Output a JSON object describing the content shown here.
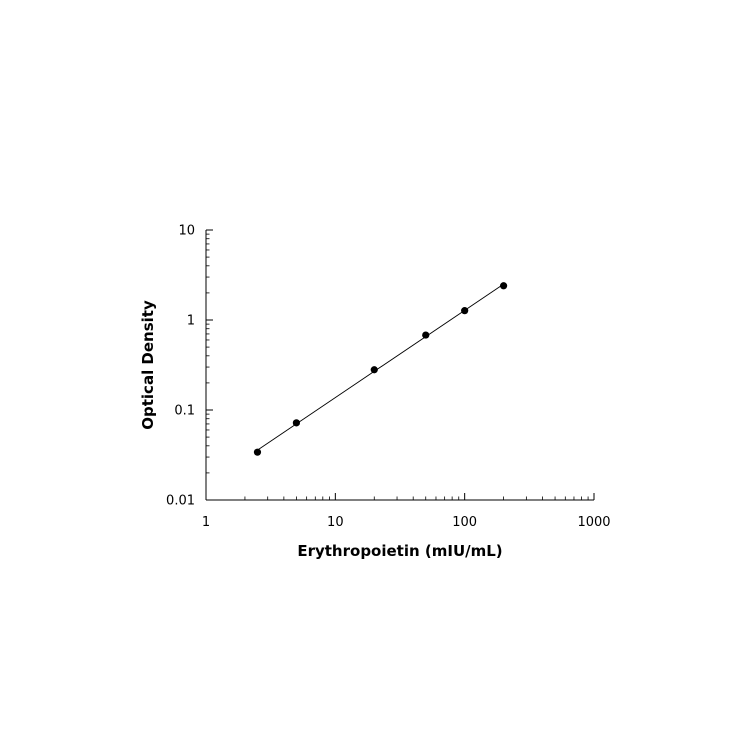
{
  "chart_data": {
    "type": "scatter",
    "title": "",
    "xlabel": "Erythropoietin (mIU/mL)",
    "ylabel": "Optical Density",
    "x_scale": "log",
    "y_scale": "log",
    "xlim": [
      1,
      1000
    ],
    "ylim": [
      0.01,
      10
    ],
    "x_ticks": [
      1,
      10,
      100,
      1000
    ],
    "x_tick_labels": [
      "1",
      "10",
      "100",
      "1000"
    ],
    "y_ticks": [
      0.01,
      0.1,
      1,
      10
    ],
    "y_tick_labels": [
      "0.01",
      "0.1",
      "1",
      "10"
    ],
    "grid": false,
    "legend": "none",
    "series": [
      {
        "x": [
          2.5,
          5,
          20,
          50,
          100,
          200
        ],
        "y": [
          0.034,
          0.072,
          0.28,
          0.68,
          1.27,
          2.4
        ],
        "marker": "circle",
        "color": "#000000",
        "fit_line": true
      }
    ]
  }
}
